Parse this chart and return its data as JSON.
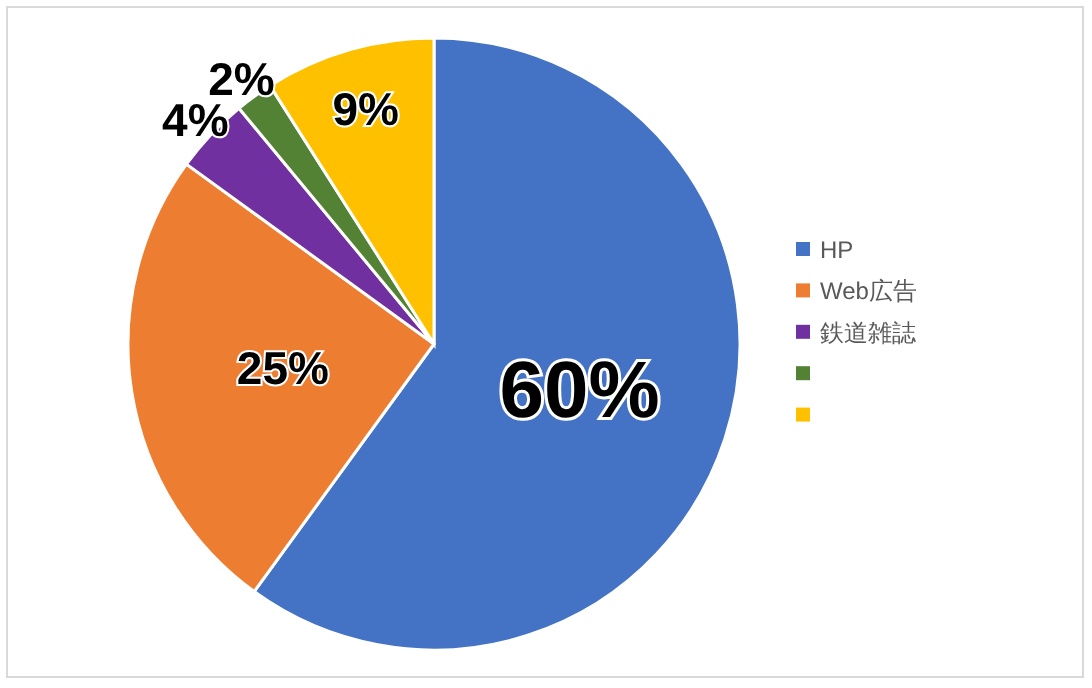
{
  "chart_data": {
    "type": "pie",
    "categories": [
      "HP",
      "Web広告",
      "鉄道雑誌",
      null,
      null
    ],
    "values": [
      60,
      25,
      4,
      2,
      9
    ],
    "colors": [
      "#4472c4",
      "#ed7d31",
      "#7030a0",
      "#548235",
      "#ffc000"
    ],
    "value_labels": [
      "60%",
      "25%",
      "4%",
      "2%",
      "9%"
    ],
    "legend": "right"
  }
}
